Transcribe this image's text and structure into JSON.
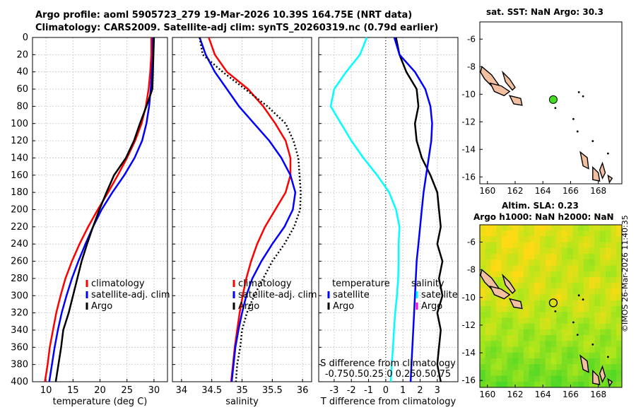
{
  "header": {
    "title_line1": "Argo profile: aoml 5905723_279 19-Mar-2026 10.39S 164.75E (NRT data)",
    "title_line2": "Climatology: CARS2009. Satellite-adj clim: synTS_20260319.nc (0.79d earlier)"
  },
  "colors": {
    "climatology": "#ff0000",
    "satellite": "#0000ff",
    "argo": "#000000",
    "cyan": "#00ffff",
    "magenta": "#ff00ff",
    "land": "#f2bfa0",
    "float_marker": "#44dd22"
  },
  "chart_data": [
    {
      "id": "temperature",
      "type": "line",
      "xlabel": "temperature (deg C)",
      "ylabel": "",
      "xlim": [
        7.5,
        32.5
      ],
      "ylim": [
        400,
        0
      ],
      "xticks": [
        10,
        15,
        20,
        25,
        30
      ],
      "yticks": [
        0,
        20,
        40,
        60,
        80,
        100,
        120,
        140,
        160,
        180,
        200,
        220,
        240,
        260,
        280,
        300,
        320,
        340,
        360,
        380,
        400
      ],
      "legend": [
        "climatology",
        "satellite-adj. clim",
        "Argo"
      ],
      "series": [
        {
          "name": "climatology",
          "color": "#ff0000",
          "style": "solid",
          "depth": [
            0,
            20,
            40,
            60,
            80,
            100,
            120,
            140,
            160,
            180,
            200,
            220,
            240,
            260,
            280,
            300,
            320,
            340,
            360,
            380,
            400
          ],
          "values": [
            29.5,
            29.5,
            29.3,
            29.0,
            28.5,
            27.7,
            26.5,
            25.0,
            23.3,
            21.5,
            19.6,
            17.8,
            16.2,
            14.8,
            13.6,
            12.7,
            11.9,
            11.3,
            10.7,
            10.3,
            9.8
          ]
        },
        {
          "name": "satellite-adj. clim",
          "color": "#0000ff",
          "style": "solid",
          "depth": [
            0,
            20,
            40,
            60,
            80,
            100,
            120,
            140,
            160,
            180,
            200,
            220,
            240,
            260,
            280,
            300,
            320,
            340,
            360,
            380,
            400
          ],
          "values": [
            29.8,
            29.8,
            29.6,
            29.4,
            29.1,
            28.6,
            27.8,
            26.4,
            24.5,
            22.3,
            20.3,
            18.7,
            17.3,
            16.0,
            14.8,
            13.8,
            12.9,
            12.2,
            11.6,
            11.1,
            10.6
          ]
        },
        {
          "name": "Argo",
          "color": "#000000",
          "style": "solid",
          "depth": [
            0,
            20,
            40,
            60,
            80,
            100,
            120,
            140,
            160,
            180,
            200,
            220,
            240,
            260,
            280,
            300,
            320,
            340,
            360,
            380,
            400
          ],
          "values": [
            30.0,
            29.9,
            29.8,
            29.7,
            28.6,
            27.4,
            26.3,
            24.8,
            22.6,
            21.2,
            19.9,
            18.7,
            17.6,
            16.6,
            15.8,
            15.0,
            14.2,
            13.2,
            12.8,
            12.3,
            11.8
          ]
        }
      ]
    },
    {
      "id": "salinity",
      "type": "line",
      "xlabel": "salinity",
      "ylabel": "",
      "xlim": [
        33.85,
        36.15
      ],
      "ylim": [
        400,
        0
      ],
      "xticks": [
        34,
        34.5,
        35,
        35.5,
        36
      ],
      "legend": [
        "climatology",
        "satellite-adj. clim",
        "Argo"
      ],
      "series": [
        {
          "name": "climatology",
          "color": "#ff0000",
          "style": "solid",
          "depth": [
            0,
            20,
            40,
            60,
            80,
            100,
            120,
            140,
            160,
            180,
            200,
            220,
            240,
            260,
            280,
            300,
            320,
            340,
            360,
            380,
            400
          ],
          "values": [
            34.45,
            34.55,
            34.75,
            35.1,
            35.35,
            35.55,
            35.72,
            35.8,
            35.8,
            35.72,
            35.55,
            35.38,
            35.25,
            35.15,
            35.07,
            35.01,
            34.96,
            34.92,
            34.88,
            34.85,
            34.82
          ]
        },
        {
          "name": "satellite-adj. clim",
          "color": "#0000ff",
          "style": "solid",
          "depth": [
            0,
            20,
            40,
            60,
            80,
            100,
            120,
            140,
            160,
            180,
            200,
            220,
            240,
            260,
            280,
            300,
            320,
            340,
            360,
            380,
            400
          ],
          "values": [
            34.3,
            34.4,
            34.55,
            34.75,
            34.95,
            35.2,
            35.45,
            35.65,
            35.8,
            35.88,
            35.84,
            35.7,
            35.5,
            35.32,
            35.17,
            35.07,
            35.0,
            34.94,
            34.89,
            34.86,
            34.83
          ]
        },
        {
          "name": "Argo",
          "color": "#000000",
          "style": "dotted",
          "depth": [
            0,
            20,
            40,
            60,
            80,
            100,
            120,
            140,
            160,
            180,
            200,
            220,
            240,
            260,
            280,
            300,
            320,
            340,
            360,
            380,
            400
          ],
          "values": [
            34.3,
            34.35,
            34.68,
            35.05,
            35.42,
            35.72,
            35.85,
            35.93,
            35.95,
            35.97,
            35.96,
            35.86,
            35.7,
            35.5,
            35.35,
            35.2,
            35.08,
            35.0,
            34.97,
            34.92,
            34.9
          ]
        }
      ]
    },
    {
      "id": "difference",
      "type": "line",
      "xlabel": "T difference from climatology",
      "xlabel2": "S difference from climatology",
      "xticks2_label": "-0.750.50.25 0 0.250.50.75",
      "xlim": [
        -3.9,
        4.2
      ],
      "ylim": [
        400,
        0
      ],
      "xticks": [
        -3,
        -2,
        -1,
        0,
        1,
        2,
        3
      ],
      "legend_left_title": "temperature",
      "legend_right_title": "salinity",
      "legend_left": [
        "satellite",
        "Argo"
      ],
      "legend_right": [
        "satellite",
        "Argo"
      ],
      "series": [
        {
          "name": "T satellite",
          "color": "#00ffff",
          "depth": [
            0,
            20,
            40,
            60,
            80,
            100,
            120,
            140,
            160,
            180,
            200,
            220,
            240,
            260,
            280,
            300,
            320,
            340,
            360,
            380,
            400
          ],
          "values": [
            -1.1,
            -1.5,
            -2.3,
            -3.0,
            -3.2,
            -2.6,
            -2.0,
            -1.3,
            -0.5,
            0.2,
            0.6,
            0.8,
            0.75,
            0.75,
            0.72,
            0.65,
            0.55,
            0.48,
            0.42,
            0.35,
            0.3
          ]
        },
        {
          "name": "T Argo",
          "color": "#000000",
          "depth": [
            0,
            20,
            40,
            60,
            80,
            100,
            120,
            140,
            160,
            180,
            200,
            220,
            240,
            260,
            280,
            300,
            320,
            340,
            360,
            380,
            400
          ],
          "values": [
            0.6,
            0.8,
            1.2,
            1.8,
            1.9,
            1.7,
            1.8,
            2.1,
            2.6,
            3.0,
            3.1,
            3.2,
            3.0,
            3.3,
            3.1,
            3.3,
            3.0,
            3.2,
            3.1,
            3.0,
            3.2
          ]
        },
        {
          "name": "S satellite",
          "color": "#0000ff",
          "depth": [
            0,
            20,
            40,
            60,
            80,
            100,
            120,
            140,
            160,
            180,
            200,
            220,
            240,
            260,
            280,
            300,
            320,
            340,
            360,
            380,
            400
          ],
          "values": [
            0.5,
            0.8,
            1.7,
            2.3,
            2.6,
            2.7,
            2.65,
            2.5,
            2.35,
            2.2,
            2.1,
            2.0,
            1.9,
            1.8,
            1.75,
            1.7,
            1.65,
            1.6,
            1.55,
            1.5,
            1.45
          ]
        }
      ]
    }
  ],
  "map_sst": {
    "title": "sat. SST: NaN Argo: 30.3",
    "xticks": [
      160,
      162,
      164,
      166,
      168
    ],
    "yticks": [
      -6,
      -8,
      -10,
      -12,
      -14,
      -16
    ]
  },
  "map_sla": {
    "title_line1": "Altim. SLA: 0.23",
    "title_line2": "Argo h1000: NaN h2000: NaN",
    "xticks": [
      160,
      162,
      164,
      166,
      168
    ],
    "yticks": [
      -6,
      -8,
      -10,
      -12,
      -14,
      -16
    ]
  },
  "timestamp": "©IMOS 26-Mar-2026 11:40:35"
}
